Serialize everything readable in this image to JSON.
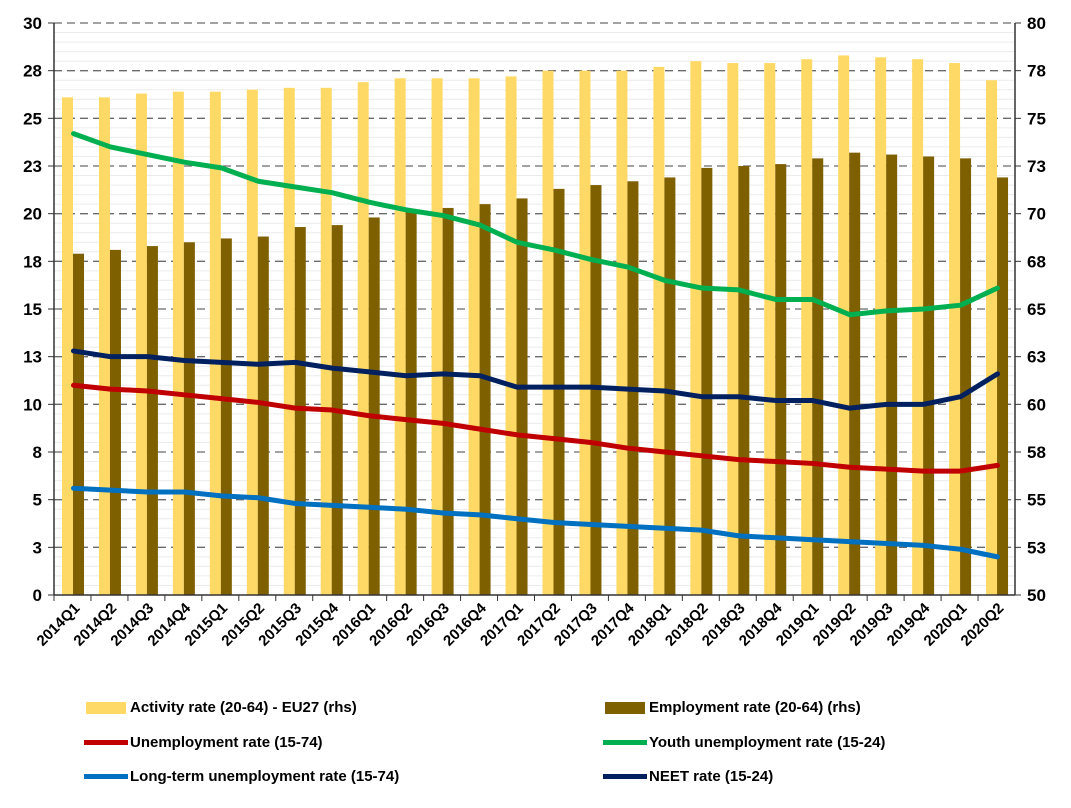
{
  "chart_data": {
    "type": "bar",
    "title": "",
    "categories": [
      "2014Q1",
      "2014Q2",
      "2014Q3",
      "2014Q4",
      "2015Q1",
      "2015Q2",
      "2015Q3",
      "2015Q4",
      "2016Q1",
      "2016Q2",
      "2016Q3",
      "2016Q4",
      "2017Q1",
      "2017Q2",
      "2017Q3",
      "2017Q4",
      "2018Q1",
      "2018Q2",
      "2018Q3",
      "2018Q4",
      "2019Q1",
      "2019Q2",
      "2019Q3",
      "2019Q4",
      "2020Q1",
      "2020Q2"
    ],
    "left_axis": {
      "ylim": [
        0,
        30
      ],
      "ticks": [
        "0",
        "3",
        "5",
        "8",
        "10",
        "13",
        "15",
        "18",
        "20",
        "23",
        "25",
        "28",
        "30"
      ]
    },
    "right_axis": {
      "ylim": [
        50,
        80
      ],
      "ticks": [
        "50",
        "53",
        "55",
        "58",
        "60",
        "63",
        "65",
        "68",
        "70",
        "73",
        "75",
        "78",
        "80"
      ]
    },
    "grid": true,
    "legend_position": "bottom",
    "series": [
      {
        "name": "Activity rate (20-64) - EU27 (rhs)",
        "kind": "bar",
        "axis": "right",
        "color": "#FFD966",
        "values": [
          76.1,
          76.1,
          76.3,
          76.4,
          76.4,
          76.5,
          76.6,
          76.6,
          76.9,
          77.1,
          77.1,
          77.1,
          77.2,
          77.5,
          77.5,
          77.5,
          77.7,
          78.0,
          77.9,
          77.9,
          78.1,
          78.3,
          78.2,
          78.1,
          77.9,
          77.0
        ]
      },
      {
        "name": "Employment rate (20-64) (rhs)",
        "kind": "bar",
        "axis": "right",
        "color": "#7F6000",
        "values": [
          67.9,
          68.1,
          68.3,
          68.5,
          68.7,
          68.8,
          69.3,
          69.4,
          69.8,
          70.1,
          70.3,
          70.5,
          70.8,
          71.3,
          71.5,
          71.7,
          71.9,
          72.4,
          72.5,
          72.6,
          72.9,
          73.2,
          73.1,
          73.0,
          72.9,
          71.9
        ]
      },
      {
        "name": "Unemployment rate (15-74)",
        "kind": "line",
        "axis": "left",
        "color": "#C00000",
        "values": [
          11.0,
          10.8,
          10.7,
          10.5,
          10.3,
          10.1,
          9.8,
          9.7,
          9.4,
          9.2,
          9.0,
          8.7,
          8.4,
          8.2,
          8.0,
          7.7,
          7.5,
          7.3,
          7.1,
          7.0,
          6.9,
          6.7,
          6.6,
          6.5,
          6.5,
          6.8
        ]
      },
      {
        "name": "Youth unemployment rate (15-24)",
        "kind": "line",
        "axis": "left",
        "color": "#00B050",
        "values": [
          24.2,
          23.5,
          23.1,
          22.7,
          22.4,
          21.7,
          21.4,
          21.1,
          20.6,
          20.2,
          19.9,
          19.4,
          18.5,
          18.1,
          17.6,
          17.2,
          16.5,
          16.1,
          16.0,
          15.5,
          15.5,
          14.7,
          14.9,
          15.0,
          15.2,
          16.1
        ]
      },
      {
        "name": "Long-term unemployment rate (15-74)",
        "kind": "line",
        "axis": "left",
        "color": "#0070C0",
        "values": [
          5.6,
          5.5,
          5.4,
          5.4,
          5.2,
          5.1,
          4.8,
          4.7,
          4.6,
          4.5,
          4.3,
          4.2,
          4.0,
          3.8,
          3.7,
          3.6,
          3.5,
          3.4,
          3.1,
          3.0,
          2.9,
          2.8,
          2.7,
          2.6,
          2.4,
          2.0
        ]
      },
      {
        "name": "NEET rate (15-24)",
        "kind": "line",
        "axis": "left",
        "color": "#002060",
        "values": [
          12.8,
          12.5,
          12.5,
          12.3,
          12.2,
          12.1,
          12.2,
          11.9,
          11.7,
          11.5,
          11.6,
          11.5,
          10.9,
          10.9,
          10.9,
          10.8,
          10.7,
          10.4,
          10.4,
          10.2,
          10.2,
          9.8,
          10.0,
          10.0,
          10.4,
          11.6
        ]
      }
    ]
  }
}
